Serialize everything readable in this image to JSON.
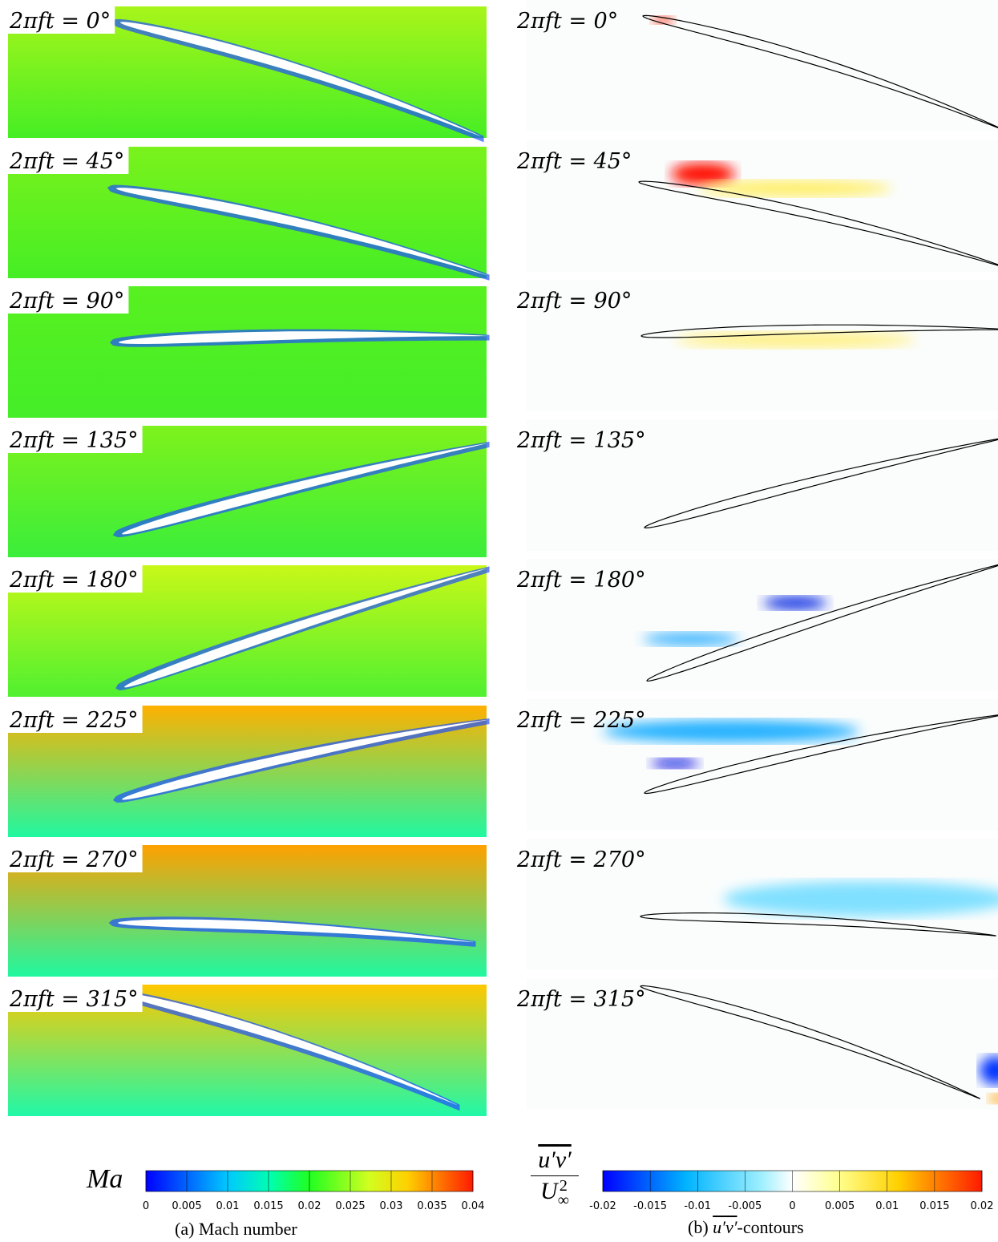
{
  "phases": [
    "2πft = 0°",
    "2πft = 45°",
    "2πft = 90°",
    "2πft = 135°",
    "2πft = 180°",
    "2πft = 225°",
    "2πft = 270°",
    "2πft = 315°"
  ],
  "colorbar_a": {
    "label": "Ma",
    "ticks": [
      0,
      0.005,
      0.01,
      0.015,
      0.02,
      0.025,
      0.03,
      0.035,
      0.04
    ]
  },
  "colorbar_b": {
    "numerator": "u′v′",
    "denominator": {
      "base": "U",
      "sup": "2",
      "sub": "∞"
    },
    "ticks": [
      -0.02,
      -0.015,
      -0.01,
      -0.005,
      0,
      0.005,
      0.01,
      0.015,
      0.02
    ]
  },
  "caption_a": "(a) Mach number",
  "caption_b": {
    "prefix": "(b) ",
    "overlined": "u′v′",
    "suffix": "-contours"
  }
}
